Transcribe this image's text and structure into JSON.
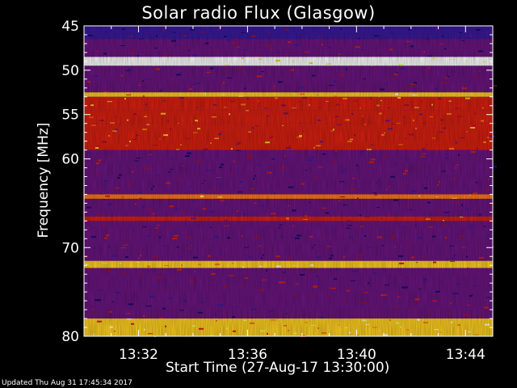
{
  "title": "Solar radio Flux (Glasgow)",
  "footer": "Updated Thu Aug 31 17:45:34 2017",
  "chart_data": {
    "type": "heatmap",
    "title": "Solar radio Flux (Glasgow)",
    "xlabel": "Start Time (27-Aug-17 13:30:00)",
    "ylabel": "Frequency [MHz]",
    "x_ticks": [
      "13:32",
      "13:36",
      "13:40",
      "13:44"
    ],
    "x_tick_minutes": [
      2,
      6,
      10,
      14
    ],
    "xlim_minutes": [
      0,
      15
    ],
    "y_ticks": [
      "45",
      "50",
      "55",
      "60",
      "70",
      "80"
    ],
    "y_tick_values": [
      45,
      50,
      55,
      60,
      70,
      80
    ],
    "ylim": [
      45,
      80
    ],
    "y_axis_inverted": true,
    "colormap": [
      "#1a0a6e",
      "#3a1a9a",
      "#6a1580",
      "#a01030",
      "#d82010",
      "#ff7a10",
      "#ffd020",
      "#f0ff60",
      "#ffffff"
    ],
    "bands": [
      {
        "from": 45.0,
        "to": 46.5,
        "level": 0.15
      },
      {
        "from": 46.5,
        "to": 48.5,
        "level": 0.2
      },
      {
        "from": 48.5,
        "to": 49.5,
        "level": 0.95
      },
      {
        "from": 49.5,
        "to": 52.5,
        "level": 0.22
      },
      {
        "from": 52.5,
        "to": 53.0,
        "level": 0.75
      },
      {
        "from": 53.0,
        "to": 54.5,
        "level": 0.52
      },
      {
        "from": 54.5,
        "to": 56.0,
        "level": 0.5
      },
      {
        "from": 56.0,
        "to": 59.0,
        "level": 0.45
      },
      {
        "from": 59.0,
        "to": 64.0,
        "level": 0.3
      },
      {
        "from": 64.0,
        "to": 64.5,
        "level": 0.6
      },
      {
        "from": 64.5,
        "to": 66.5,
        "level": 0.3
      },
      {
        "from": 66.5,
        "to": 67.0,
        "level": 0.55
      },
      {
        "from": 67.0,
        "to": 71.5,
        "level": 0.25
      },
      {
        "from": 71.5,
        "to": 72.3,
        "level": 0.7
      },
      {
        "from": 72.3,
        "to": 78.0,
        "level": 0.28
      },
      {
        "from": 78.0,
        "to": 80.5,
        "level": 0.72
      }
    ],
    "grid": false
  }
}
